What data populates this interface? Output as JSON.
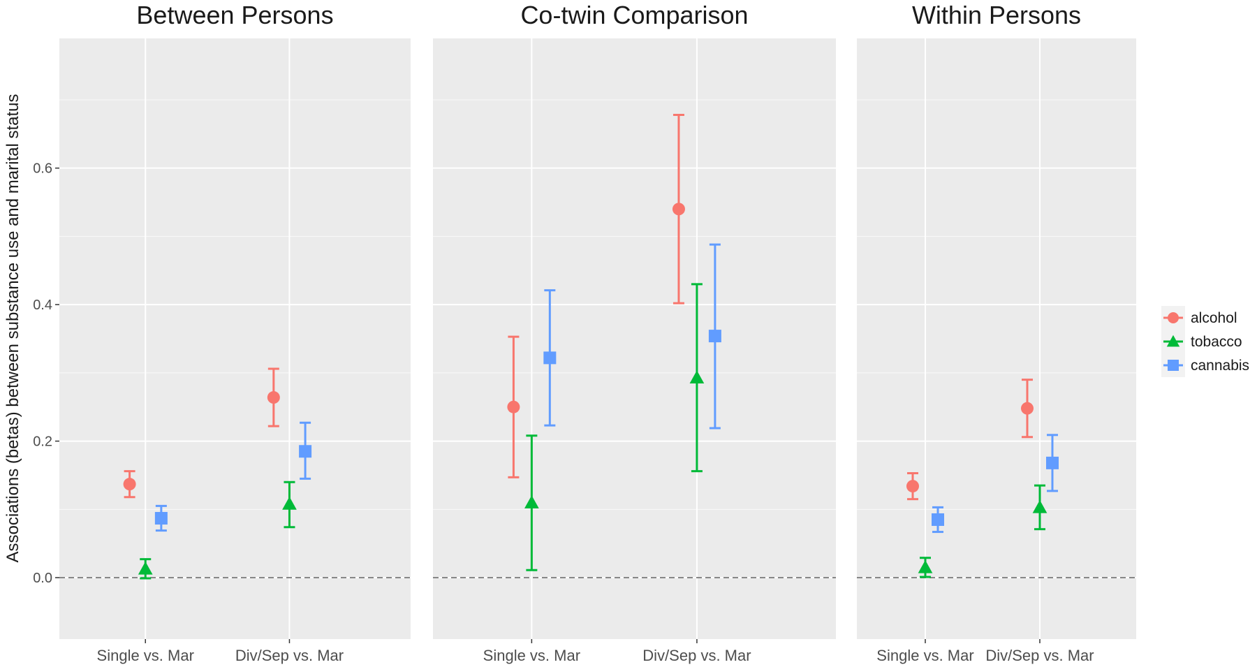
{
  "chart_data": {
    "type": "scatter",
    "subtype": "point-range (faceted)",
    "ylabel": "Associations (betas) between substance use and marital status",
    "xlabel": "",
    "ylim": [
      -0.09,
      0.79
    ],
    "yticks": [
      0.0,
      0.2,
      0.4,
      0.6
    ],
    "ytick_labels": [
      "0.0",
      "0.2",
      "0.4",
      "0.6"
    ],
    "reference_line": 0.0,
    "categories": [
      "Single vs. Mar",
      "Div/Sep vs. Mar"
    ],
    "legend": {
      "placement": "right",
      "entries": [
        {
          "name": "alcohol",
          "color": "#F8766D",
          "shape": "circle"
        },
        {
          "name": "tobacco",
          "color": "#00BA38",
          "shape": "triangle"
        },
        {
          "name": "cannabis",
          "color": "#619CFF",
          "shape": "square"
        }
      ]
    },
    "panels": [
      {
        "title": "Between Persons",
        "series": [
          {
            "name": "alcohol",
            "values": [
              0.137,
              0.264
            ],
            "lower": [
              0.118,
              0.222
            ],
            "upper": [
              0.156,
              0.306
            ]
          },
          {
            "name": "tobacco",
            "values": [
              0.013,
              0.108
            ],
            "lower": [
              -0.001,
              0.074
            ],
            "upper": [
              0.027,
              0.14
            ]
          },
          {
            "name": "cannabis",
            "values": [
              0.087,
              0.185
            ],
            "lower": [
              0.069,
              0.145
            ],
            "upper": [
              0.105,
              0.227
            ]
          }
        ]
      },
      {
        "title": "Co-twin Comparison",
        "series": [
          {
            "name": "alcohol",
            "values": [
              0.25,
              0.54
            ],
            "lower": [
              0.147,
              0.402
            ],
            "upper": [
              0.353,
              0.678
            ]
          },
          {
            "name": "tobacco",
            "values": [
              0.11,
              0.293
            ],
            "lower": [
              0.011,
              0.156
            ],
            "upper": [
              0.208,
              0.43
            ]
          },
          {
            "name": "cannabis",
            "values": [
              0.322,
              0.354
            ],
            "lower": [
              0.223,
              0.219
            ],
            "upper": [
              0.421,
              0.488
            ]
          }
        ]
      },
      {
        "title": "Within Persons",
        "series": [
          {
            "name": "alcohol",
            "values": [
              0.134,
              0.248
            ],
            "lower": [
              0.115,
              0.206
            ],
            "upper": [
              0.153,
              0.29
            ]
          },
          {
            "name": "tobacco",
            "values": [
              0.015,
              0.103
            ],
            "lower": [
              0.001,
              0.071
            ],
            "upper": [
              0.029,
              0.135
            ]
          },
          {
            "name": "cannabis",
            "values": [
              0.085,
              0.168
            ],
            "lower": [
              0.067,
              0.127
            ],
            "upper": [
              0.103,
              0.209
            ]
          }
        ]
      }
    ]
  }
}
